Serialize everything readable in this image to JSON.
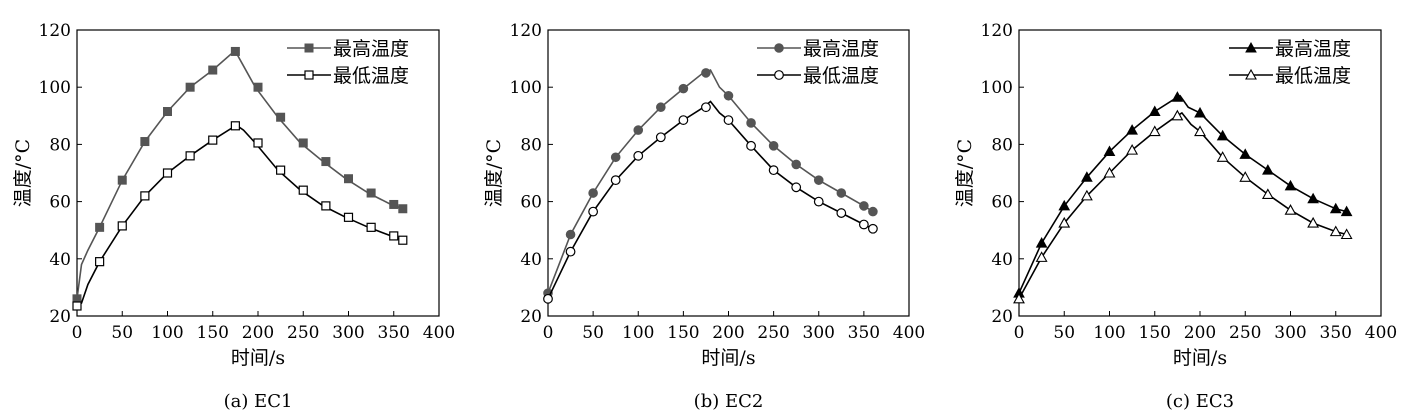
{
  "chart_data": [
    {
      "type": "line",
      "caption": "(a) EC1",
      "xlabel": "时间/s",
      "ylabel": "温度/°C",
      "xlim": [
        0,
        400
      ],
      "ylim": [
        20,
        120
      ],
      "xticks": [
        0,
        50,
        100,
        150,
        200,
        250,
        300,
        350,
        400
      ],
      "yticks": [
        20,
        40,
        60,
        80,
        100,
        120
      ],
      "legend_position": "top-right",
      "series": [
        {
          "name": "最高温度",
          "marker": "square-filled",
          "color": "#555555",
          "x": [
            0,
            5,
            12,
            25,
            50,
            75,
            100,
            125,
            150,
            170,
            175,
            183,
            197,
            222,
            247,
            272,
            297,
            322,
            347,
            360
          ],
          "y": [
            26,
            38,
            43,
            51,
            67.5,
            81,
            91.5,
            100,
            106,
            111.5,
            112.5,
            108,
            100,
            89.5,
            80.5,
            74,
            68,
            63,
            59,
            57.5
          ],
          "marker_x": [
            0,
            25,
            50,
            75,
            100,
            125,
            150,
            175,
            200,
            225,
            250,
            275,
            300,
            325,
            350,
            360
          ],
          "marker_y": [
            26,
            51,
            67.5,
            81,
            91.5,
            100,
            106,
            112.5,
            100,
            89.5,
            80.5,
            74,
            68,
            63,
            59,
            57.5
          ]
        },
        {
          "name": "最低温度",
          "marker": "square-open",
          "color": "#000000",
          "x": [
            0,
            5,
            12,
            25,
            50,
            75,
            100,
            125,
            150,
            170,
            177,
            184,
            197,
            222,
            247,
            272,
            297,
            322,
            347,
            360
          ],
          "y": [
            23.5,
            24.5,
            31,
            39,
            51.5,
            62,
            70,
            76,
            81.5,
            85.5,
            86.5,
            85,
            80.5,
            71,
            64,
            58.5,
            54.5,
            51,
            48,
            46.5
          ],
          "marker_x": [
            0,
            25,
            50,
            75,
            100,
            125,
            150,
            175,
            200,
            225,
            250,
            275,
            300,
            325,
            350,
            360
          ],
          "marker_y": [
            23.5,
            39,
            51.5,
            62,
            70,
            76,
            81.5,
            86.5,
            80.5,
            71,
            64,
            58.5,
            54.5,
            51,
            48,
            46.5
          ]
        }
      ]
    },
    {
      "type": "line",
      "caption": "(b) EC2",
      "xlabel": "时间/s",
      "ylabel": "温度/°C",
      "xlim": [
        0,
        400
      ],
      "ylim": [
        20,
        120
      ],
      "xticks": [
        0,
        50,
        100,
        150,
        200,
        250,
        300,
        350,
        400
      ],
      "yticks": [
        20,
        40,
        60,
        80,
        100,
        120
      ],
      "legend_position": "top-right",
      "series": [
        {
          "name": "最高温度",
          "marker": "circle-filled",
          "color": "#555555",
          "x": [
            0,
            25,
            50,
            75,
            100,
            125,
            150,
            170,
            180,
            190,
            200,
            225,
            250,
            275,
            300,
            325,
            350,
            360
          ],
          "y": [
            28,
            48.5,
            63,
            75.5,
            85,
            93,
            99.5,
            104.5,
            106,
            100,
            97,
            87.5,
            79.5,
            73,
            67.5,
            63,
            58.5,
            56.5
          ],
          "marker_x": [
            0,
            25,
            50,
            75,
            100,
            125,
            150,
            175,
            200,
            225,
            250,
            275,
            300,
            325,
            350,
            360
          ],
          "marker_y": [
            28,
            48.5,
            63,
            75.5,
            85,
            93,
            99.5,
            105,
            97,
            87.5,
            79.5,
            73,
            67.5,
            63,
            58.5,
            56.5
          ]
        },
        {
          "name": "最低温度",
          "marker": "circle-open",
          "color": "#000000",
          "x": [
            0,
            25,
            50,
            75,
            100,
            125,
            150,
            170,
            180,
            190,
            200,
            225,
            250,
            275,
            300,
            325,
            350,
            360
          ],
          "y": [
            26,
            42.5,
            56.5,
            67.5,
            76,
            82.5,
            88.5,
            92.5,
            95,
            91,
            88.5,
            79.5,
            71,
            65,
            60,
            56,
            52,
            50.5
          ],
          "marker_x": [
            0,
            25,
            50,
            75,
            100,
            125,
            150,
            175,
            200,
            225,
            250,
            275,
            300,
            325,
            350,
            360
          ],
          "marker_y": [
            26,
            42.5,
            56.5,
            67.5,
            76,
            82.5,
            88.5,
            93,
            88.5,
            79.5,
            71,
            65,
            60,
            56,
            52,
            50.5
          ]
        }
      ]
    },
    {
      "type": "line",
      "caption": "(c) EC3",
      "xlabel": "时间/s",
      "ylabel": "温度/°C",
      "xlim": [
        0,
        400
      ],
      "ylim": [
        20,
        120
      ],
      "xticks": [
        0,
        50,
        100,
        150,
        200,
        250,
        300,
        350,
        400
      ],
      "yticks": [
        20,
        40,
        60,
        80,
        100,
        120
      ],
      "legend_position": "top-right",
      "series": [
        {
          "name": "最高温度",
          "marker": "triangle-filled",
          "color": "#000000",
          "x": [
            0,
            25,
            50,
            75,
            100,
            125,
            150,
            170,
            178,
            187,
            200,
            225,
            250,
            275,
            300,
            325,
            350,
            362
          ],
          "y": [
            28,
            45.5,
            58.5,
            68.5,
            77.5,
            85,
            91.5,
            95.5,
            97,
            93,
            91,
            83,
            76.5,
            71,
            65.5,
            61,
            57.5,
            56.5
          ],
          "marker_x": [
            0,
            25,
            50,
            75,
            100,
            125,
            150,
            175,
            200,
            225,
            250,
            275,
            300,
            325,
            350,
            362
          ],
          "marker_y": [
            28,
            45.5,
            58.5,
            68.5,
            77.5,
            85,
            91.5,
            96.5,
            91,
            83,
            76.5,
            71,
            65.5,
            61,
            57.5,
            56.5
          ]
        },
        {
          "name": "最低温度",
          "marker": "half-triangle-open",
          "color": "#000000",
          "x": [
            0,
            25,
            50,
            75,
            100,
            125,
            150,
            170,
            180,
            190,
            200,
            225,
            250,
            275,
            300,
            325,
            350,
            362
          ],
          "y": [
            26,
            40.5,
            52.5,
            62,
            70,
            78,
            84.5,
            89,
            91,
            87,
            84.5,
            75.5,
            68.5,
            62.5,
            57,
            52.5,
            49.5,
            48.5
          ],
          "marker_x": [
            0,
            25,
            50,
            75,
            100,
            125,
            150,
            175,
            200,
            225,
            250,
            275,
            300,
            325,
            350,
            362
          ],
          "marker_y": [
            26,
            40.5,
            52.5,
            62,
            70,
            78,
            84.5,
            90,
            84.5,
            75.5,
            68.5,
            62.5,
            57,
            52.5,
            49.5,
            48.5
          ]
        }
      ]
    }
  ]
}
